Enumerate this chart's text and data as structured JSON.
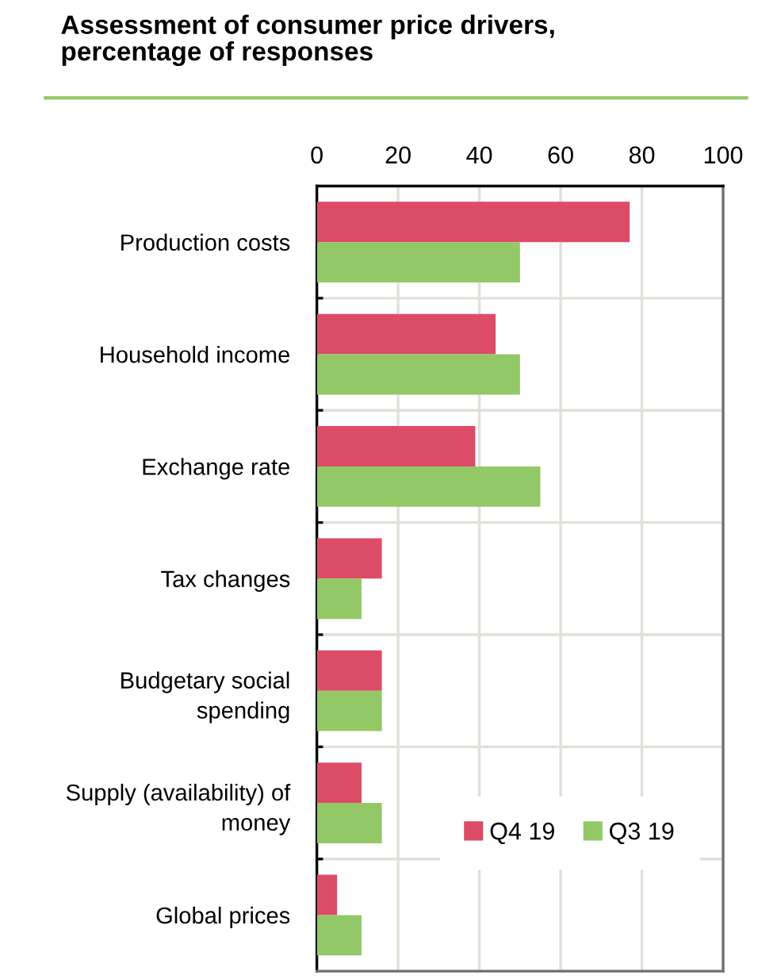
{
  "chart_data": {
    "type": "bar",
    "orientation": "horizontal",
    "title": "Assessment of consumer price drivers,\npercentage of responses",
    "categories": [
      "Production costs",
      "Household income",
      "Exchange rate",
      "Tax changes",
      "Budgetary social\nspending",
      "Supply (availability) of\nmoney",
      "Global prices"
    ],
    "series": [
      {
        "name": "Q4 19",
        "color": "#dc4c66",
        "values": [
          77,
          44,
          39,
          16,
          16,
          11,
          5
        ]
      },
      {
        "name": "Q3 19",
        "color": "#92c966",
        "values": [
          50,
          50,
          55,
          11,
          16,
          16,
          11
        ]
      }
    ],
    "xlim": [
      0,
      100
    ],
    "xticks": [
      0,
      20,
      40,
      60,
      80,
      100
    ],
    "grid": true,
    "legend": "bottom right"
  }
}
